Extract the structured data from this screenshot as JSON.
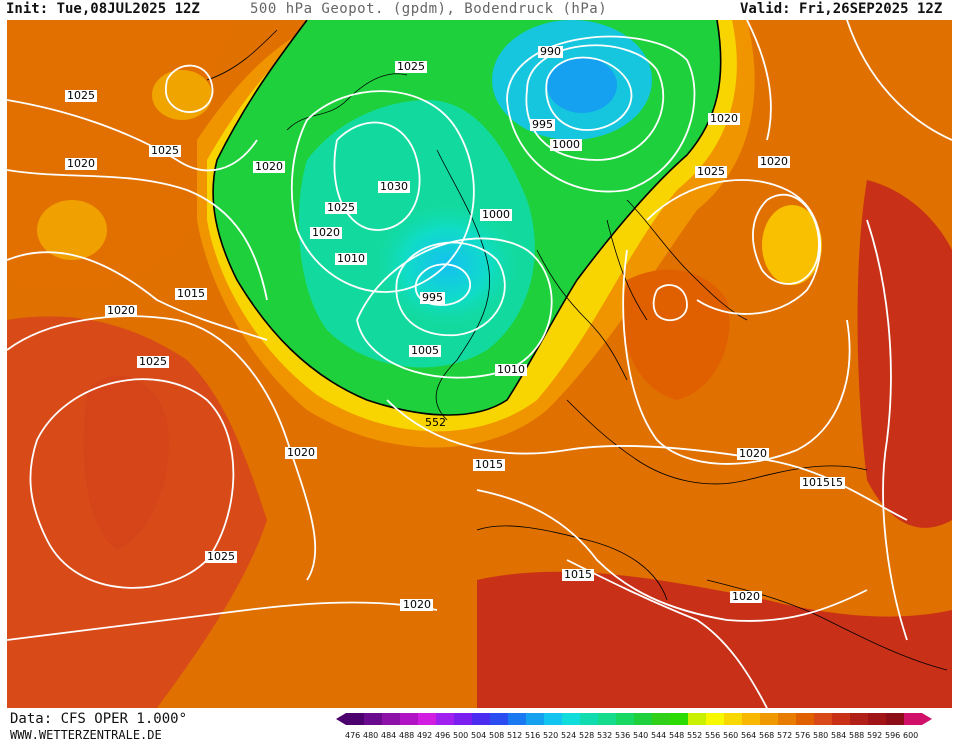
{
  "header": {
    "init": "Init: Tue,08JUL2025 12Z",
    "title": "500 hPa Geopot. (gpdm), Bodendruck (hPa)",
    "valid": "Valid: Fri,26SEP2025 12Z"
  },
  "footer": {
    "data_source": "Data: CFS OPER 1.000°",
    "website": "WWW.WETTERZENTRALE.DE"
  },
  "legend": {
    "values": [
      "476",
      "480",
      "484",
      "488",
      "492",
      "496",
      "500",
      "504",
      "508",
      "512",
      "516",
      "520",
      "524",
      "528",
      "532",
      "536",
      "540",
      "544",
      "548",
      "552",
      "556",
      "560",
      "564",
      "568",
      "572",
      "576",
      "580",
      "584",
      "588",
      "592",
      "596",
      "600"
    ],
    "colors": [
      "#4b006e",
      "#6a0a8c",
      "#8c12a8",
      "#b014c4",
      "#d21ee0",
      "#a020f0",
      "#7a1ff0",
      "#4b2cf0",
      "#2a4cf0",
      "#1a78f0",
      "#16a0f0",
      "#14c4f0",
      "#10dcdc",
      "#10dcb0",
      "#14dc8c",
      "#18d864",
      "#1ed03c",
      "#30d018",
      "#2cdc00",
      "#c8f000",
      "#f8f800",
      "#f8d800",
      "#f8b800",
      "#f09800",
      "#e87c00",
      "#e06000",
      "#d84818",
      "#c83018",
      "#b02018",
      "#a01418",
      "#8c0c18",
      "#d0106a"
    ]
  },
  "map": {
    "contour_552_label": "552",
    "pressure_labels": [
      {
        "text": "1025"
      },
      {
        "text": "1025"
      },
      {
        "text": "1020"
      },
      {
        "text": "1020"
      },
      {
        "text": "1015"
      },
      {
        "text": "1020"
      },
      {
        "text": "1025"
      },
      {
        "text": "1020"
      },
      {
        "text": "1025"
      },
      {
        "text": "1020"
      },
      {
        "text": "1015"
      },
      {
        "text": "1030"
      },
      {
        "text": "1025"
      },
      {
        "text": "1020"
      },
      {
        "text": "1010"
      },
      {
        "text": "1025"
      },
      {
        "text": "990"
      },
      {
        "text": "995"
      },
      {
        "text": "1000"
      },
      {
        "text": "1000"
      },
      {
        "text": "995"
      },
      {
        "text": "1005"
      },
      {
        "text": "1010"
      },
      {
        "text": "1015"
      },
      {
        "text": "1020"
      },
      {
        "text": "1025"
      },
      {
        "text": "1020"
      },
      {
        "text": "1020"
      },
      {
        "text": "1015"
      },
      {
        "text": "1015"
      },
      {
        "text": "1020"
      },
      {
        "text": "1020"
      }
    ]
  }
}
